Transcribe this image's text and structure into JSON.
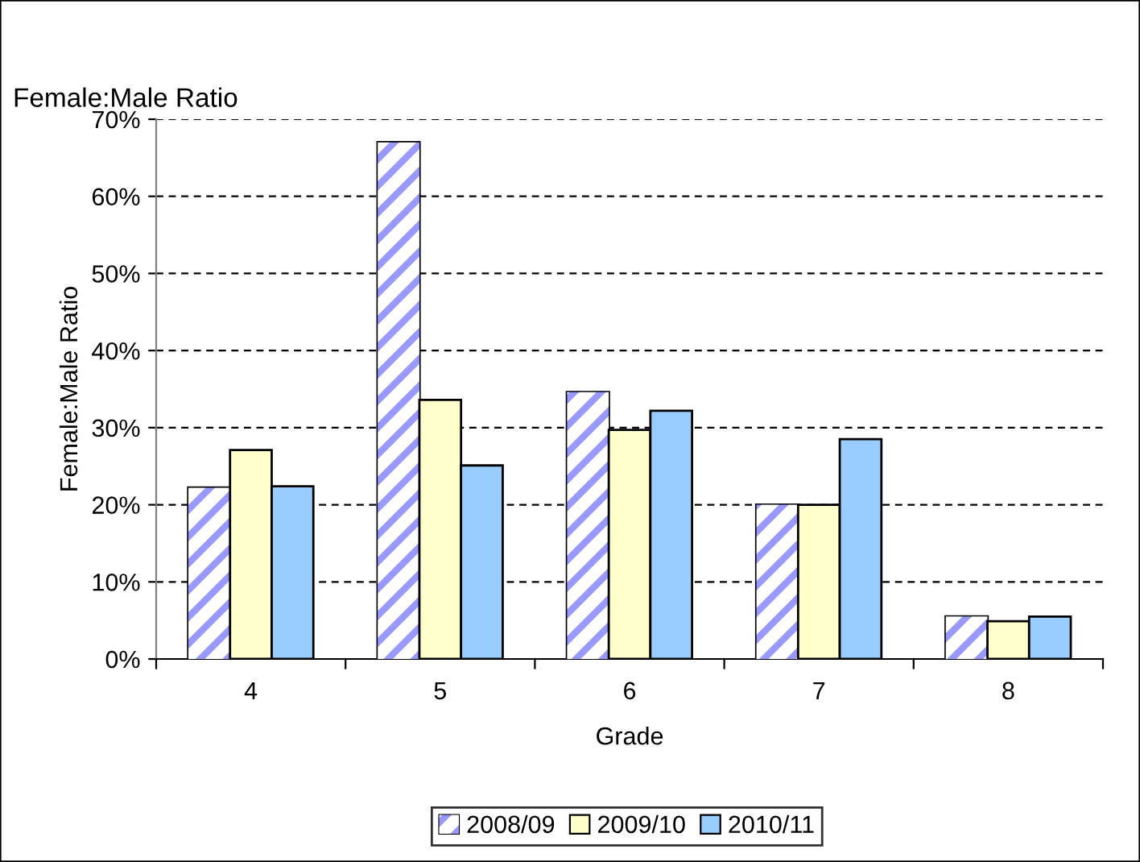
{
  "chart_data": {
    "type": "bar",
    "title": "Female:Male Ratio",
    "xlabel": "Grade",
    "ylabel": "Female:Male Ratio",
    "categories": [
      "4",
      "5",
      "6",
      "7",
      "8"
    ],
    "series": [
      {
        "name": "2008/09",
        "color": "#9999ff",
        "values": [
          22.2,
          67.0,
          34.6,
          20.0,
          5.5
        ]
      },
      {
        "name": "2009/10",
        "color": "#ffffcc",
        "values": [
          27.1,
          33.6,
          29.7,
          20.0,
          4.9
        ]
      },
      {
        "name": "2010/11",
        "color": "#99ccff",
        "values": [
          22.4,
          25.1,
          32.2,
          28.5,
          5.5
        ]
      }
    ],
    "ylim": [
      0,
      70
    ],
    "yticks": [
      {
        "value": 0,
        "label": "0%"
      },
      {
        "value": 10,
        "label": "10%"
      },
      {
        "value": 20,
        "label": "20%"
      },
      {
        "value": 30,
        "label": "30%"
      },
      {
        "value": 40,
        "label": "40%"
      },
      {
        "value": 50,
        "label": "50%"
      },
      {
        "value": 60,
        "label": "60%"
      },
      {
        "value": 70,
        "label": "70%"
      }
    ],
    "grid": "y",
    "legend": "bottom"
  }
}
